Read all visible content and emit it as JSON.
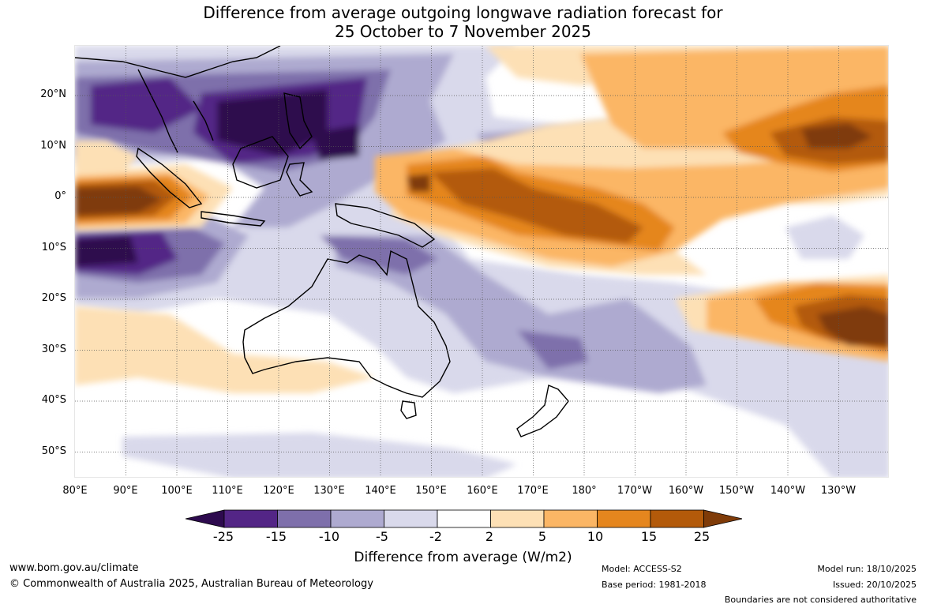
{
  "title": {
    "line1": "Difference from average outgoing longwave radiation forecast for",
    "line2": "25 October to 7 November 2025"
  },
  "map": {
    "lat_labels": [
      "20°N",
      "10°N",
      "0°",
      "10°S",
      "20°S",
      "30°S",
      "40°S",
      "50°S"
    ],
    "lon_labels": [
      "80°E",
      "90°E",
      "100°E",
      "110°E",
      "120°E",
      "130°E",
      "140°E",
      "150°E",
      "160°E",
      "170°E",
      "180°",
      "170°W",
      "160°W",
      "150°W",
      "140°W",
      "130°W"
    ]
  },
  "colorbar": {
    "ticks": [
      "-25",
      "-15",
      "-10",
      "-5",
      "-2",
      "2",
      "5",
      "10",
      "15",
      "25"
    ],
    "colors": [
      "#2d0a4e",
      "#532586",
      "#7e6fab",
      "#aeaad0",
      "#d9d9eb",
      "#ffffff",
      "#fde0b5",
      "#fbb665",
      "#e5861e",
      "#b35a0a",
      "#7f3b08"
    ],
    "label": "Difference from average (W/m2)"
  },
  "footer": {
    "url": "www.bom.gov.au/climate",
    "copyright": "© Commonwealth of Australia 2025, Australian Bureau of Meteorology",
    "model": "Model: ACCESS-S2",
    "base_period": "Base period: 1981-2018",
    "model_run": "Model run: 18/10/2025",
    "issued": "Issued: 20/10/2025",
    "disclaimer": "Boundaries are not considered authoritative"
  }
}
